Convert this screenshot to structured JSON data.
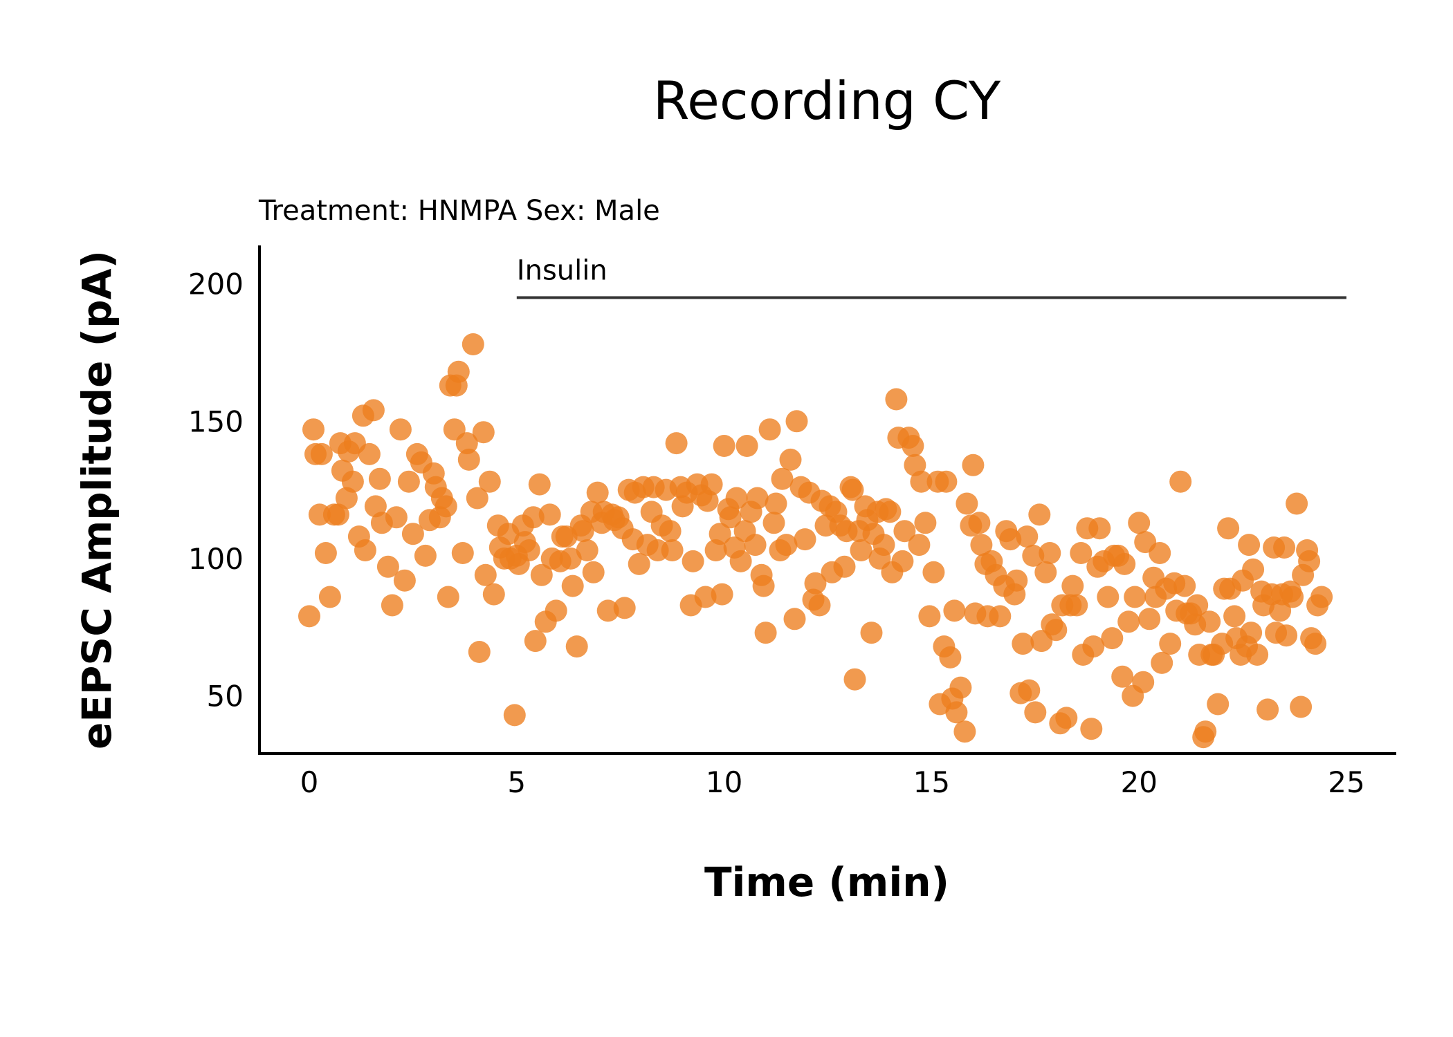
{
  "chart_data": {
    "type": "scatter",
    "title": "Recording CY",
    "subtitle": "Treatment: HNMPA  Sex: Male",
    "xlabel": "Time (min)",
    "ylabel": "eEPSC Amplitude (pA)",
    "xlim": [
      -1.2,
      26.2
    ],
    "ylim": [
      29,
      214
    ],
    "xticks": [
      0,
      5,
      10,
      15,
      20,
      25
    ],
    "yticks": [
      50,
      100,
      150,
      200
    ],
    "grid": false,
    "point_color": "#ED7D1E",
    "annotation": {
      "label": "Insulin",
      "x_start": 5,
      "x_end": 25,
      "y": 195
    },
    "points": [
      [
        0.0,
        79
      ],
      [
        0.1,
        147
      ],
      [
        0.15,
        138
      ],
      [
        0.25,
        116
      ],
      [
        0.3,
        138
      ],
      [
        0.4,
        102
      ],
      [
        0.5,
        86
      ],
      [
        0.6,
        116
      ],
      [
        0.7,
        116
      ],
      [
        0.75,
        142
      ],
      [
        0.8,
        132
      ],
      [
        0.9,
        122
      ],
      [
        0.95,
        139
      ],
      [
        1.05,
        128
      ],
      [
        1.1,
        142
      ],
      [
        1.2,
        108
      ],
      [
        1.3,
        152
      ],
      [
        1.35,
        103
      ],
      [
        1.45,
        138
      ],
      [
        1.55,
        154
      ],
      [
        1.6,
        119
      ],
      [
        1.7,
        129
      ],
      [
        1.75,
        113
      ],
      [
        1.9,
        97
      ],
      [
        2.0,
        83
      ],
      [
        2.1,
        115
      ],
      [
        2.2,
        147
      ],
      [
        2.3,
        92
      ],
      [
        2.4,
        128
      ],
      [
        2.5,
        109
      ],
      [
        2.6,
        138
      ],
      [
        2.7,
        135
      ],
      [
        2.8,
        101
      ],
      [
        2.9,
        114
      ],
      [
        3.0,
        131
      ],
      [
        3.05,
        126
      ],
      [
        3.15,
        115
      ],
      [
        3.2,
        122
      ],
      [
        3.3,
        119
      ],
      [
        3.35,
        86
      ],
      [
        3.4,
        163
      ],
      [
        3.5,
        147
      ],
      [
        3.55,
        163
      ],
      [
        3.6,
        168
      ],
      [
        3.7,
        102
      ],
      [
        3.8,
        142
      ],
      [
        3.85,
        136
      ],
      [
        3.95,
        178
      ],
      [
        4.05,
        122
      ],
      [
        4.1,
        66
      ],
      [
        4.2,
        146
      ],
      [
        4.25,
        94
      ],
      [
        4.35,
        128
      ],
      [
        4.45,
        87
      ],
      [
        4.55,
        112
      ],
      [
        4.6,
        104
      ],
      [
        4.7,
        100
      ],
      [
        4.8,
        109
      ],
      [
        4.85,
        100
      ],
      [
        4.95,
        43
      ],
      [
        5.0,
        101
      ],
      [
        5.05,
        98
      ],
      [
        5.15,
        112
      ],
      [
        5.2,
        106
      ],
      [
        5.3,
        103
      ],
      [
        5.4,
        115
      ],
      [
        5.45,
        70
      ],
      [
        5.55,
        127
      ],
      [
        5.6,
        94
      ],
      [
        5.7,
        77
      ],
      [
        5.8,
        116
      ],
      [
        5.85,
        100
      ],
      [
        5.95,
        81
      ],
      [
        6.05,
        99
      ],
      [
        6.1,
        108
      ],
      [
        6.2,
        108
      ],
      [
        6.3,
        100
      ],
      [
        6.35,
        90
      ],
      [
        6.45,
        68
      ],
      [
        6.55,
        112
      ],
      [
        6.6,
        110
      ],
      [
        6.7,
        103
      ],
      [
        6.8,
        117
      ],
      [
        6.85,
        95
      ],
      [
        6.95,
        124
      ],
      [
        7.05,
        113
      ],
      [
        7.1,
        117
      ],
      [
        7.2,
        81
      ],
      [
        7.3,
        116
      ],
      [
        7.35,
        114
      ],
      [
        7.45,
        115
      ],
      [
        7.55,
        111
      ],
      [
        7.6,
        82
      ],
      [
        7.7,
        125
      ],
      [
        7.8,
        107
      ],
      [
        7.85,
        124
      ],
      [
        7.95,
        98
      ],
      [
        8.05,
        126
      ],
      [
        8.15,
        105
      ],
      [
        8.25,
        117
      ],
      [
        8.3,
        126
      ],
      [
        8.4,
        103
      ],
      [
        8.5,
        112
      ],
      [
        8.6,
        125
      ],
      [
        8.7,
        110
      ],
      [
        8.75,
        103
      ],
      [
        8.85,
        142
      ],
      [
        8.95,
        126
      ],
      [
        9.0,
        119
      ],
      [
        9.1,
        124
      ],
      [
        9.2,
        83
      ],
      [
        9.25,
        99
      ],
      [
        9.35,
        127
      ],
      [
        9.45,
        123
      ],
      [
        9.55,
        86
      ],
      [
        9.6,
        121
      ],
      [
        9.7,
        127
      ],
      [
        9.8,
        103
      ],
      [
        9.9,
        109
      ],
      [
        9.95,
        87
      ],
      [
        10.0,
        141
      ],
      [
        10.1,
        118
      ],
      [
        10.15,
        115
      ],
      [
        10.25,
        104
      ],
      [
        10.3,
        122
      ],
      [
        10.4,
        99
      ],
      [
        10.5,
        110
      ],
      [
        10.55,
        141
      ],
      [
        10.65,
        117
      ],
      [
        10.75,
        105
      ],
      [
        10.8,
        122
      ],
      [
        10.9,
        94
      ],
      [
        10.95,
        90
      ],
      [
        11.0,
        73
      ],
      [
        11.1,
        147
      ],
      [
        11.2,
        113
      ],
      [
        11.25,
        120
      ],
      [
        11.35,
        103
      ],
      [
        11.4,
        129
      ],
      [
        11.5,
        105
      ],
      [
        11.6,
        136
      ],
      [
        11.7,
        78
      ],
      [
        11.75,
        150
      ],
      [
        11.85,
        126
      ],
      [
        11.95,
        107
      ],
      [
        12.05,
        124
      ],
      [
        12.15,
        85
      ],
      [
        12.2,
        91
      ],
      [
        12.3,
        83
      ],
      [
        12.35,
        121
      ],
      [
        12.45,
        112
      ],
      [
        12.55,
        119
      ],
      [
        12.6,
        95
      ],
      [
        12.7,
        117
      ],
      [
        12.8,
        112
      ],
      [
        12.9,
        97
      ],
      [
        12.95,
        110
      ],
      [
        13.05,
        126
      ],
      [
        13.1,
        125
      ],
      [
        13.15,
        56
      ],
      [
        13.25,
        110
      ],
      [
        13.3,
        103
      ],
      [
        13.4,
        119
      ],
      [
        13.45,
        114
      ],
      [
        13.55,
        73
      ],
      [
        13.6,
        109
      ],
      [
        13.7,
        117
      ],
      [
        13.75,
        100
      ],
      [
        13.85,
        105
      ],
      [
        13.9,
        118
      ],
      [
        14.0,
        117
      ],
      [
        14.05,
        95
      ],
      [
        14.15,
        158
      ],
      [
        14.2,
        144
      ],
      [
        14.3,
        99
      ],
      [
        14.35,
        110
      ],
      [
        14.45,
        144
      ],
      [
        14.55,
        141
      ],
      [
        14.6,
        134
      ],
      [
        14.7,
        105
      ],
      [
        14.75,
        128
      ],
      [
        14.85,
        113
      ],
      [
        14.95,
        79
      ],
      [
        15.05,
        95
      ],
      [
        15.15,
        128
      ],
      [
        15.2,
        47
      ],
      [
        15.3,
        68
      ],
      [
        15.35,
        128
      ],
      [
        15.45,
        64
      ],
      [
        15.5,
        49
      ],
      [
        15.55,
        81
      ],
      [
        15.6,
        44
      ],
      [
        15.7,
        53
      ],
      [
        15.8,
        37
      ],
      [
        15.85,
        120
      ],
      [
        15.95,
        112
      ],
      [
        16.0,
        134
      ],
      [
        16.05,
        80
      ],
      [
        16.15,
        113
      ],
      [
        16.2,
        105
      ],
      [
        16.3,
        98
      ],
      [
        16.35,
        79
      ],
      [
        16.45,
        99
      ],
      [
        16.55,
        94
      ],
      [
        16.65,
        79
      ],
      [
        16.75,
        90
      ],
      [
        16.8,
        110
      ],
      [
        16.9,
        107
      ],
      [
        17.0,
        87
      ],
      [
        17.05,
        92
      ],
      [
        17.15,
        51
      ],
      [
        17.2,
        69
      ],
      [
        17.3,
        108
      ],
      [
        17.35,
        52
      ],
      [
        17.45,
        101
      ],
      [
        17.5,
        44
      ],
      [
        17.6,
        116
      ],
      [
        17.65,
        70
      ],
      [
        17.75,
        95
      ],
      [
        17.85,
        102
      ],
      [
        17.9,
        76
      ],
      [
        18.0,
        74
      ],
      [
        18.1,
        40
      ],
      [
        18.15,
        83
      ],
      [
        18.25,
        42
      ],
      [
        18.35,
        83
      ],
      [
        18.4,
        90
      ],
      [
        18.5,
        83
      ],
      [
        18.6,
        102
      ],
      [
        18.65,
        65
      ],
      [
        18.75,
        111
      ],
      [
        18.85,
        38
      ],
      [
        18.9,
        68
      ],
      [
        19.0,
        97
      ],
      [
        19.05,
        111
      ],
      [
        19.15,
        99
      ],
      [
        19.25,
        86
      ],
      [
        19.35,
        71
      ],
      [
        19.4,
        101
      ],
      [
        19.5,
        101
      ],
      [
        19.6,
        57
      ],
      [
        19.65,
        98
      ],
      [
        19.75,
        77
      ],
      [
        19.85,
        50
      ],
      [
        19.9,
        86
      ],
      [
        20.0,
        113
      ],
      [
        20.1,
        55
      ],
      [
        20.15,
        106
      ],
      [
        20.25,
        78
      ],
      [
        20.35,
        93
      ],
      [
        20.4,
        86
      ],
      [
        20.5,
        102
      ],
      [
        20.55,
        62
      ],
      [
        20.65,
        89
      ],
      [
        20.75,
        69
      ],
      [
        20.85,
        91
      ],
      [
        20.9,
        81
      ],
      [
        21.0,
        128
      ],
      [
        21.1,
        90
      ],
      [
        21.15,
        80
      ],
      [
        21.25,
        80
      ],
      [
        21.35,
        76
      ],
      [
        21.4,
        83
      ],
      [
        21.45,
        65
      ],
      [
        21.55,
        35
      ],
      [
        21.6,
        37
      ],
      [
        21.7,
        77
      ],
      [
        21.75,
        65
      ],
      [
        21.8,
        65
      ],
      [
        21.9,
        47
      ],
      [
        22.0,
        69
      ],
      [
        22.05,
        89
      ],
      [
        22.15,
        111
      ],
      [
        22.2,
        89
      ],
      [
        22.3,
        79
      ],
      [
        22.35,
        71
      ],
      [
        22.45,
        65
      ],
      [
        22.5,
        92
      ],
      [
        22.6,
        68
      ],
      [
        22.65,
        105
      ],
      [
        22.7,
        73
      ],
      [
        22.75,
        96
      ],
      [
        22.85,
        65
      ],
      [
        22.95,
        88
      ],
      [
        23.0,
        83
      ],
      [
        23.1,
        45
      ],
      [
        23.2,
        87
      ],
      [
        23.25,
        104
      ],
      [
        23.3,
        73
      ],
      [
        23.4,
        81
      ],
      [
        23.45,
        87
      ],
      [
        23.5,
        104
      ],
      [
        23.55,
        72
      ],
      [
        23.65,
        88
      ],
      [
        23.7,
        86
      ],
      [
        23.8,
        120
      ],
      [
        23.9,
        46
      ],
      [
        23.95,
        94
      ],
      [
        24.05,
        103
      ],
      [
        24.1,
        99
      ],
      [
        24.15,
        71
      ],
      [
        24.25,
        69
      ],
      [
        24.3,
        83
      ],
      [
        24.4,
        86
      ]
    ]
  }
}
